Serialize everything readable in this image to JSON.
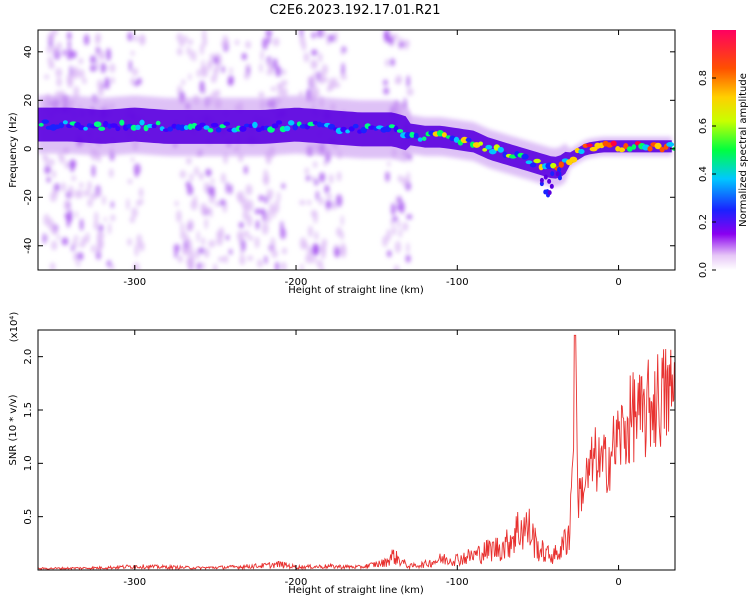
{
  "title": "C2E6.2023.192.17.01.R21",
  "chart_data": [
    {
      "type": "heatmap",
      "title": "C2E6.2023.192.17.01.R21",
      "xlabel": "Height of straight line (km)",
      "ylabel": "Frequency (Hz)",
      "xlim": [
        -360,
        35
      ],
      "ylim": [
        -50,
        49
      ],
      "xticks": [
        -300,
        -200,
        -100,
        0
      ],
      "yticks": [
        -40,
        -20,
        0,
        20,
        40
      ],
      "colorbar": {
        "label": "Normalized spectral amplitude",
        "range": [
          0,
          1
        ],
        "ticks": [
          0.0,
          0.2,
          0.4,
          0.6,
          0.8
        ],
        "colormap": "rainbow (white-violet to red)"
      },
      "ridge": {
        "name": "",
        "x": [
          -360,
          -340,
          -320,
          -300,
          -280,
          -260,
          -240,
          -220,
          -200,
          -180,
          -160,
          -140,
          -130,
          -120,
          -110,
          -100,
          -90,
          -80,
          -70,
          -60,
          -50,
          -40,
          -35,
          -30,
          -20,
          -10,
          0,
          10,
          20,
          35
        ],
        "y": [
          10,
          10,
          9,
          10,
          9,
          9,
          9,
          9,
          10,
          9,
          8,
          8,
          6,
          5,
          5,
          4,
          3,
          0,
          -2,
          -4,
          -6,
          -8,
          -7,
          -4,
          0,
          1,
          1,
          1,
          1,
          1
        ]
      },
      "grid": false
    },
    {
      "type": "line",
      "xlabel": "Height of straight line (km)",
      "ylabel": "SNR (10 * v/v)",
      "y_scale_note": "(x10⁴)",
      "xlim": [
        -360,
        35
      ],
      "ylim": [
        0,
        2.25
      ],
      "xticks": [
        -300,
        -200,
        -100,
        0
      ],
      "yticks": [
        0.5,
        1.0,
        1.5,
        2.0
      ],
      "series": [
        {
          "name": "",
          "color": "#e8312f",
          "x": [
            -360,
            -320,
            -300,
            -280,
            -260,
            -240,
            -220,
            -210,
            -200,
            -180,
            -160,
            -145,
            -140,
            -130,
            -120,
            -110,
            -100,
            -90,
            -80,
            -70,
            -65,
            -60,
            -55,
            -50,
            -45,
            -40,
            -35,
            -30,
            -27,
            -25,
            -20,
            -15,
            -10,
            -5,
            0,
            5,
            10,
            15,
            20,
            25,
            30,
            35
          ],
          "y": [
            0.02,
            0.03,
            0.05,
            0.04,
            0.03,
            0.04,
            0.06,
            0.08,
            0.04,
            0.05,
            0.04,
            0.1,
            0.2,
            0.05,
            0.08,
            0.15,
            0.15,
            0.2,
            0.28,
            0.33,
            0.5,
            0.6,
            0.55,
            0.3,
            0.22,
            0.2,
            0.3,
            0.6,
            2.2,
            0.85,
            1.05,
            1.3,
            1.2,
            1.35,
            1.55,
            1.65,
            1.85,
            1.75,
            1.95,
            2.0,
            2.05,
            2.08
          ]
        }
      ],
      "grid": false
    }
  ]
}
